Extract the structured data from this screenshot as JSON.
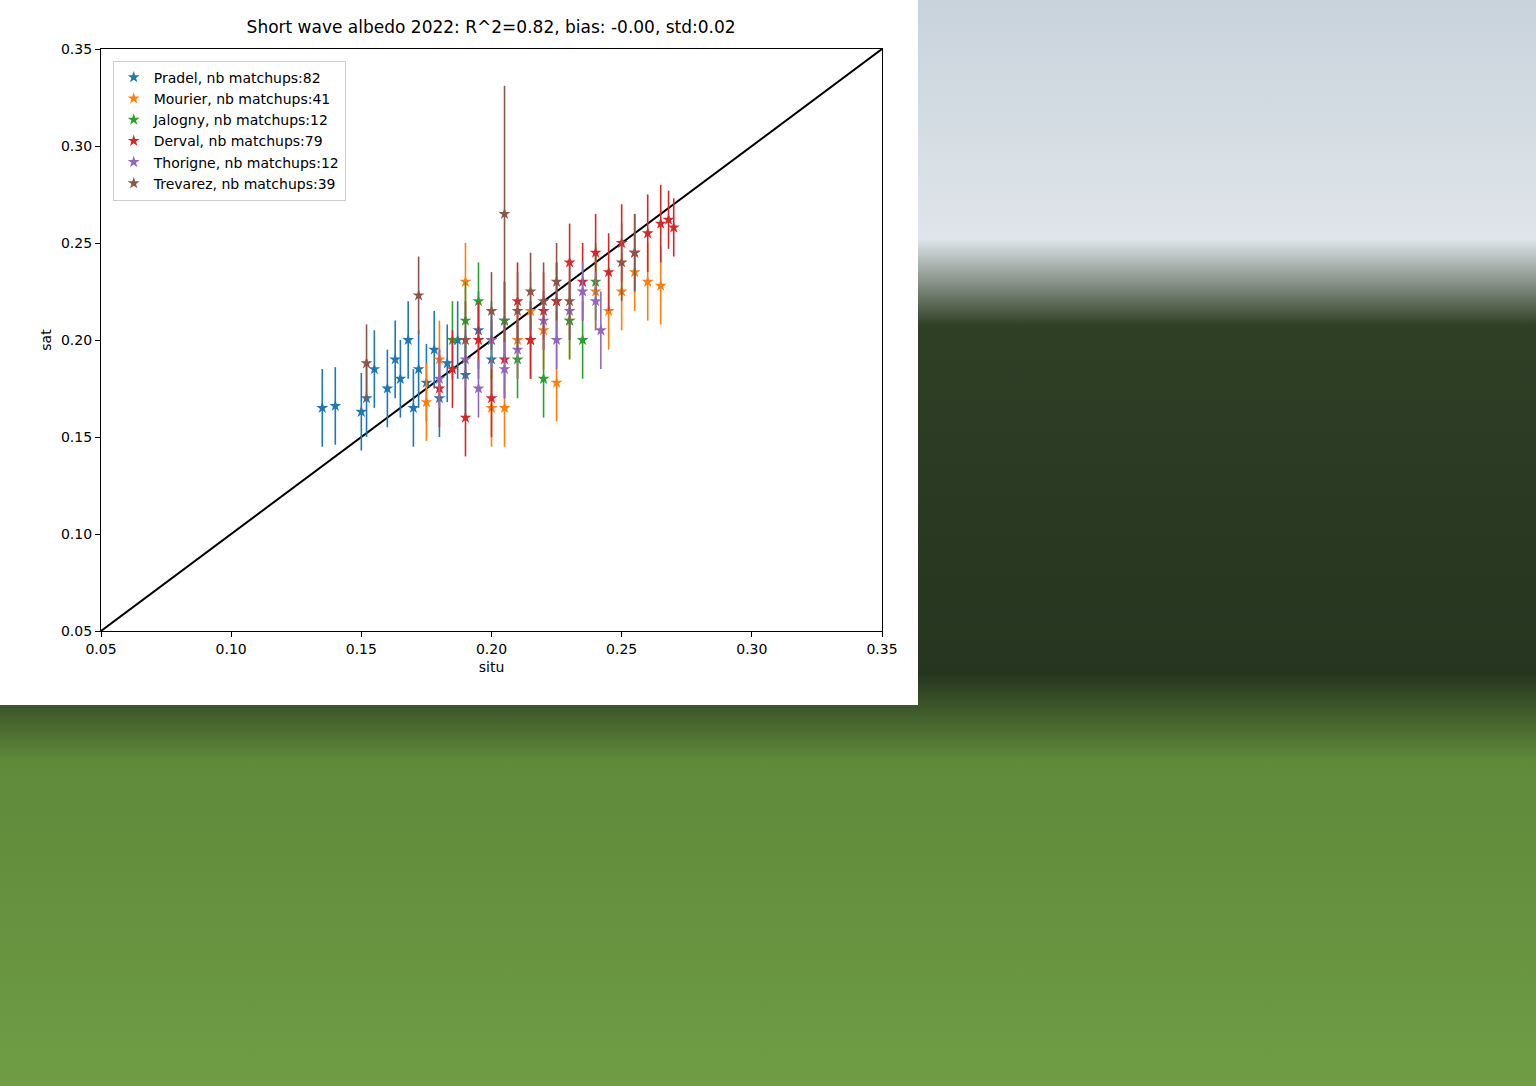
{
  "chart_data": {
    "type": "scatter",
    "title": "Short wave albedo 2022: R^2=0.82, bias: -0.00, std:0.02",
    "x_label": "situ",
    "y_label": "sat",
    "xlim": [
      0.05,
      0.35
    ],
    "ylim": [
      0.05,
      0.35
    ],
    "xticks": [
      0.05,
      {
        "value": 0.1,
        "label": "0.10"
      },
      0.15,
      {
        "value": 0.2,
        "label": "0.20"
      },
      0.25,
      {
        "value": 0.3,
        "label": "0.30"
      },
      0.35
    ],
    "yticks": [
      0.05,
      {
        "value": 0.1,
        "label": "0.10"
      },
      0.15,
      {
        "value": 0.2,
        "label": "0.20"
      },
      0.25,
      {
        "value": 0.3,
        "label": "0.30"
      },
      0.35
    ],
    "grid": false,
    "legend": "upper left",
    "marker": "star",
    "reference_line": {
      "x": [
        0.05,
        0.35
      ],
      "y": [
        0.05,
        0.35
      ],
      "color": "#000000"
    },
    "series": [
      {
        "name": "Pradel, nb matchups:82",
        "color": "#1f77b4",
        "x": [
          0.135,
          0.14,
          0.15,
          0.152,
          0.155,
          0.16,
          0.163,
          0.165,
          0.168,
          0.17,
          0.172,
          0.175,
          0.178,
          0.18,
          0.183,
          0.187,
          0.19,
          0.195,
          0.2,
          0.205
        ],
        "y": [
          0.165,
          0.166,
          0.163,
          0.17,
          0.185,
          0.175,
          0.19,
          0.18,
          0.2,
          0.165,
          0.185,
          0.178,
          0.195,
          0.17,
          0.188,
          0.2,
          0.182,
          0.205,
          0.19,
          0.21
        ],
        "y_error": [
          0.02,
          0.02,
          0.02,
          0.02,
          0.02,
          0.02,
          0.02,
          0.02,
          0.02,
          0.02,
          0.02,
          0.02,
          0.02,
          0.02,
          0.02,
          0.02,
          0.02,
          0.02,
          0.02,
          0.02
        ]
      },
      {
        "name": "Mourier, nb matchups:41",
        "color": "#ff7f0e",
        "x": [
          0.175,
          0.18,
          0.19,
          0.2,
          0.205,
          0.21,
          0.215,
          0.22,
          0.225,
          0.23,
          0.24,
          0.245,
          0.25,
          0.255,
          0.26,
          0.265
        ],
        "y": [
          0.168,
          0.19,
          0.23,
          0.165,
          0.165,
          0.2,
          0.215,
          0.205,
          0.178,
          0.21,
          0.225,
          0.215,
          0.225,
          0.235,
          0.23,
          0.228
        ],
        "y_error": [
          0.02,
          0.02,
          0.02,
          0.02,
          0.02,
          0.02,
          0.02,
          0.02,
          0.02,
          0.02,
          0.02,
          0.02,
          0.02,
          0.02,
          0.02,
          0.02
        ]
      },
      {
        "name": "Jalogny, nb matchups:12",
        "color": "#2ca02c",
        "x": [
          0.185,
          0.19,
          0.195,
          0.2,
          0.205,
          0.21,
          0.215,
          0.22,
          0.225,
          0.23,
          0.235,
          0.24
        ],
        "y": [
          0.2,
          0.21,
          0.22,
          0.2,
          0.21,
          0.19,
          0.2,
          0.18,
          0.22,
          0.21,
          0.2,
          0.23
        ],
        "y_error": [
          0.02,
          0.02,
          0.02,
          0.02,
          0.02,
          0.02,
          0.02,
          0.02,
          0.02,
          0.02,
          0.02,
          0.02
        ]
      },
      {
        "name": "Derval, nb matchups:79",
        "color": "#d62728",
        "x": [
          0.18,
          0.185,
          0.19,
          0.195,
          0.2,
          0.205,
          0.21,
          0.215,
          0.22,
          0.225,
          0.23,
          0.235,
          0.24,
          0.245,
          0.25,
          0.255,
          0.26,
          0.265,
          0.27,
          0.268
        ],
        "y": [
          0.175,
          0.185,
          0.16,
          0.2,
          0.17,
          0.19,
          0.22,
          0.2,
          0.215,
          0.22,
          0.24,
          0.23,
          0.245,
          0.235,
          0.25,
          0.245,
          0.255,
          0.26,
          0.258,
          0.262
        ],
        "y_error": [
          0.02,
          0.02,
          0.02,
          0.02,
          0.02,
          0.02,
          0.02,
          0.02,
          0.02,
          0.02,
          0.02,
          0.02,
          0.02,
          0.02,
          0.02,
          0.02,
          0.02,
          0.02,
          0.015,
          0.015
        ]
      },
      {
        "name": "Thorigne, nb matchups:12",
        "color": "#9467bd",
        "x": [
          0.18,
          0.19,
          0.195,
          0.2,
          0.205,
          0.21,
          0.22,
          0.225,
          0.23,
          0.24,
          0.242,
          0.235
        ],
        "y": [
          0.18,
          0.19,
          0.175,
          0.2,
          0.185,
          0.195,
          0.21,
          0.2,
          0.215,
          0.22,
          0.205,
          0.225
        ],
        "y_error": [
          0.015,
          0.015,
          0.015,
          0.015,
          0.015,
          0.015,
          0.015,
          0.015,
          0.015,
          0.015,
          0.02,
          0.015
        ]
      },
      {
        "name": "Trevarez, nb matchups:39",
        "color": "#8c564b",
        "x": [
          0.152,
          0.172,
          0.19,
          0.2,
          0.205,
          0.21,
          0.215,
          0.22,
          0.225,
          0.23,
          0.25,
          0.255
        ],
        "y": [
          0.188,
          0.223,
          0.2,
          0.215,
          0.265,
          0.215,
          0.225,
          0.22,
          0.23,
          0.22,
          0.24,
          0.245
        ],
        "y_error": [
          0.02,
          0.02,
          0.02,
          0.02,
          0.066,
          0.02,
          0.02,
          0.02,
          0.02,
          0.02,
          0.02,
          0.02
        ]
      }
    ]
  }
}
